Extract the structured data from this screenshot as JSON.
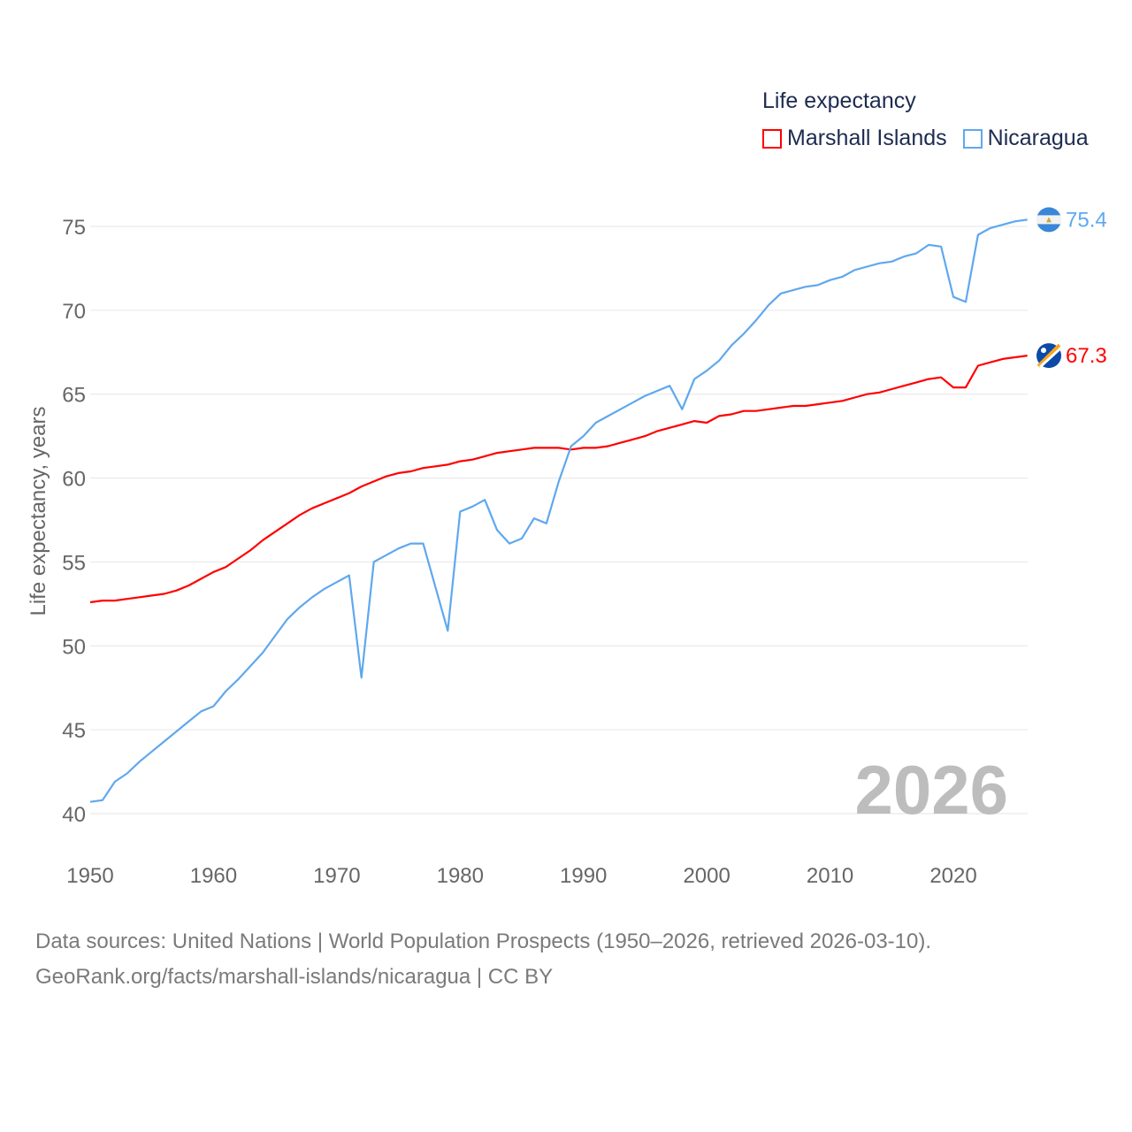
{
  "chart_data": {
    "type": "line",
    "title": "Life expectancy",
    "ylabel": "Life expectancy, years",
    "xlabel": "",
    "xlim": [
      1950,
      2026
    ],
    "ylim": [
      38,
      77
    ],
    "x_ticks": [
      "1950",
      "1960",
      "1970",
      "1980",
      "1990",
      "2000",
      "2010",
      "2020"
    ],
    "y_ticks": [
      "40",
      "45",
      "50",
      "55",
      "60",
      "65",
      "70",
      "75"
    ],
    "grid": true,
    "legend_position": "top-right",
    "watermark_year": "2026",
    "x_start": 1950,
    "series": [
      {
        "name": "Marshall Islands",
        "color": "#ff0000",
        "end_label": "67.3",
        "values": [
          52.6,
          52.7,
          52.7,
          52.8,
          52.9,
          53.0,
          53.1,
          53.3,
          53.6,
          54.0,
          54.4,
          54.7,
          55.2,
          55.7,
          56.3,
          56.8,
          57.3,
          57.8,
          58.2,
          58.5,
          58.8,
          59.1,
          59.5,
          59.8,
          60.1,
          60.3,
          60.4,
          60.6,
          60.7,
          60.8,
          61.0,
          61.1,
          61.3,
          61.5,
          61.6,
          61.7,
          61.8,
          61.8,
          61.8,
          61.7,
          61.8,
          61.8,
          61.9,
          62.1,
          62.3,
          62.5,
          62.8,
          63.0,
          63.2,
          63.4,
          63.3,
          63.7,
          63.8,
          64.0,
          64.0,
          64.1,
          64.2,
          64.3,
          64.3,
          64.4,
          64.5,
          64.6,
          64.8,
          65.0,
          65.1,
          65.3,
          65.5,
          65.7,
          65.9,
          66.0,
          65.4,
          65.4,
          66.7,
          66.9,
          67.1,
          67.2,
          67.3
        ]
      },
      {
        "name": "Nicaragua",
        "color": "#5fa8ee",
        "end_label": "75.4",
        "values": [
          40.7,
          40.8,
          41.9,
          42.4,
          43.1,
          43.7,
          44.3,
          44.9,
          45.5,
          46.1,
          46.4,
          47.3,
          48.0,
          48.8,
          49.6,
          50.6,
          51.6,
          52.3,
          52.9,
          53.4,
          53.8,
          54.2,
          48.1,
          55.0,
          55.4,
          55.8,
          56.1,
          56.1,
          53.5,
          50.9,
          58.0,
          58.3,
          58.7,
          56.9,
          56.1,
          56.4,
          57.6,
          57.3,
          59.8,
          61.9,
          62.5,
          63.3,
          63.7,
          64.1,
          64.5,
          64.9,
          65.2,
          65.5,
          64.1,
          65.9,
          66.4,
          67.0,
          67.9,
          68.6,
          69.4,
          70.3,
          71.0,
          71.2,
          71.4,
          71.5,
          71.8,
          72.0,
          72.4,
          72.6,
          72.8,
          72.9,
          73.2,
          73.4,
          73.9,
          73.8,
          70.8,
          70.5,
          74.5,
          74.9,
          75.1,
          75.3,
          75.4
        ]
      }
    ]
  },
  "source": {
    "line1": "Data sources: United Nations | World Population Prospects (1950–2026, retrieved 2026-03-10).",
    "line2": "GeoRank.org/facts/marshall-islands/nicaragua | CC BY"
  }
}
